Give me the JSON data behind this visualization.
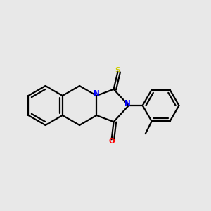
{
  "background_color": "#e8e8e8",
  "bond_color": "#000000",
  "N_color": "#0000ff",
  "O_color": "#ff0000",
  "S_color": "#cccc00",
  "line_width": 1.6,
  "figsize": [
    3.0,
    3.0
  ],
  "dpi": 100,
  "xlim": [
    0,
    10
  ],
  "ylim": [
    1,
    9
  ]
}
